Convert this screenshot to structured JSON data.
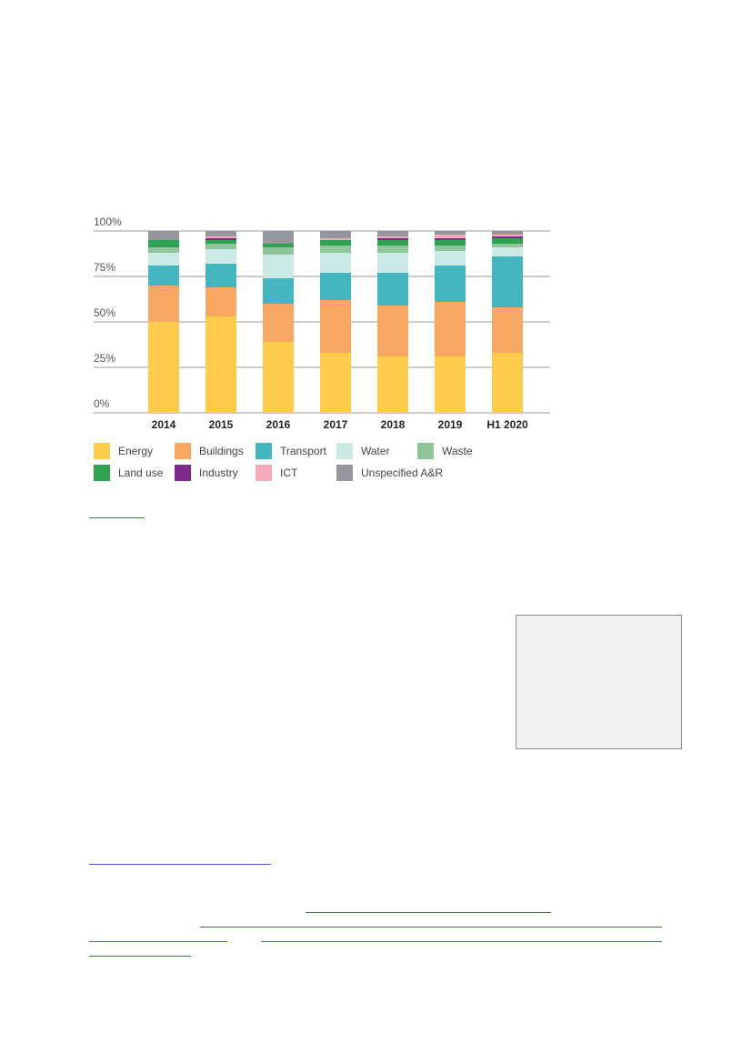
{
  "chart_data": {
    "type": "bar",
    "stacked": true,
    "normalized": true,
    "categories": [
      "2014",
      "2015",
      "2016",
      "2017",
      "2018",
      "2019",
      "H1 2020"
    ],
    "y_ticks": [
      "0%",
      "25%",
      "50%",
      "75%",
      "100%"
    ],
    "ylim": [
      0,
      100
    ],
    "grid": true,
    "legend_position": "bottom",
    "series": [
      {
        "name": "Energy",
        "color": "#ffcb4c",
        "values": [
          50,
          53,
          39,
          33,
          31,
          31,
          33
        ]
      },
      {
        "name": "Buildings",
        "color": "#f7a864",
        "values": [
          20,
          16,
          21,
          29,
          28,
          30,
          25
        ]
      },
      {
        "name": "Transport",
        "color": "#43b6bf",
        "values": [
          11,
          13,
          14,
          15,
          18,
          20,
          28
        ]
      },
      {
        "name": "Water",
        "color": "#cbeae6",
        "values": [
          7,
          8,
          13,
          11,
          11,
          8,
          5
        ]
      },
      {
        "name": "Waste",
        "color": "#8fc49a",
        "values": [
          3,
          3,
          4,
          4,
          4,
          3,
          2
        ]
      },
      {
        "name": "Land use",
        "color": "#2ea153",
        "values": [
          4,
          2,
          2,
          3,
          3,
          3,
          3
        ]
      },
      {
        "name": "Industry",
        "color": "#7f2b8e",
        "values": [
          0,
          1,
          0,
          0,
          1,
          1,
          1
        ]
      },
      {
        "name": "ICT",
        "color": "#f5a9bb",
        "values": [
          0,
          1,
          0,
          1,
          1,
          2,
          1
        ]
      },
      {
        "name": "Unspecified A&R",
        "color": "#96969e",
        "values": [
          5,
          3,
          7,
          4,
          3,
          2,
          2
        ]
      }
    ]
  }
}
